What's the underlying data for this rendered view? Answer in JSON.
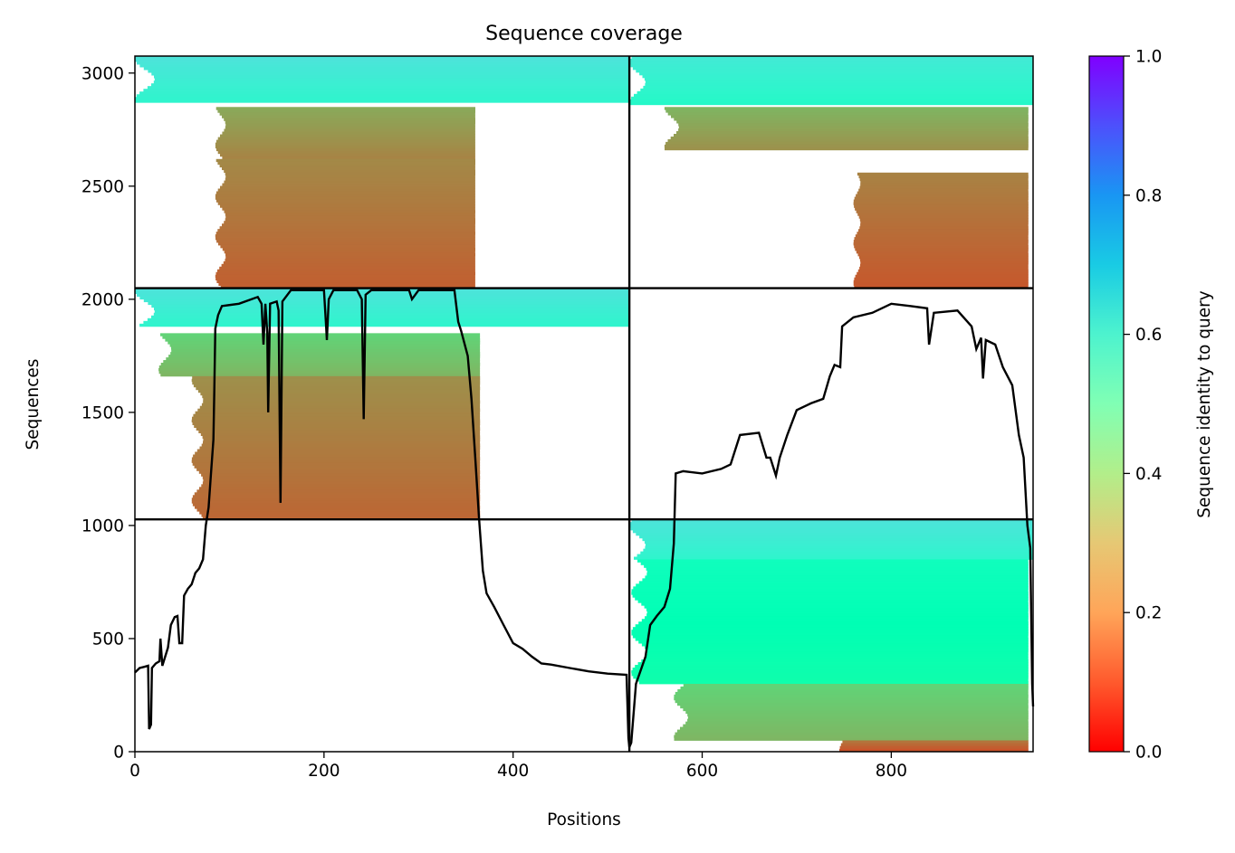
{
  "chart_data": {
    "type": "heatmap",
    "title": "Sequence coverage",
    "xlabel": "Positions",
    "ylabel": "Sequences",
    "xlim": [
      0,
      950
    ],
    "ylim": [
      0,
      3075
    ],
    "x_ticks": [
      0,
      200,
      400,
      600,
      800
    ],
    "y_ticks": [
      0,
      500,
      1000,
      1500,
      2000,
      2500,
      3000
    ],
    "grid": false,
    "colorbar": {
      "label": "Sequence identity to query",
      "colormap": "rainbow_r",
      "range": [
        0,
        1
      ],
      "ticks": [
        "0.0",
        "0.2",
        "0.4",
        "0.6",
        "0.8",
        "1.0"
      ]
    },
    "chain_boundaries_x": [
      523
    ],
    "chain_boundaries_y": [
      1027,
      2049
    ],
    "blocks": [
      {
        "name": "A1",
        "x": [
          0,
          523
        ],
        "y": [
          2049,
          3075
        ],
        "segments": [
          {
            "x": [
              0,
              523
            ],
            "y": [
              2870,
              3075
            ],
            "identity": 0.62
          },
          {
            "x": [
              85,
              360
            ],
            "y": [
              2620,
              2850
            ],
            "identity": 0.2
          },
          {
            "x": [
              85,
              360
            ],
            "y": [
              2049,
              2620
            ],
            "identity": 0.15
          }
        ]
      },
      {
        "name": "A2",
        "x": [
          523,
          950
        ],
        "y": [
          2049,
          3075
        ],
        "segments": [
          {
            "x": [
              523,
              950
            ],
            "y": [
              2860,
              3075
            ],
            "identity": 0.6
          },
          {
            "x": [
              560,
              945
            ],
            "y": [
              2660,
              2850
            ],
            "identity": 0.22
          },
          {
            "x": [
              760,
              945
            ],
            "y": [
              2049,
              2560
            ],
            "identity": 0.14
          }
        ]
      },
      {
        "name": "B1",
        "x": [
          0,
          523
        ],
        "y": [
          1027,
          2049
        ],
        "segments": [
          {
            "x": [
              0,
              523
            ],
            "y": [
              1880,
              2049
            ],
            "identity": 0.62
          },
          {
            "x": [
              25,
              365
            ],
            "y": [
              1660,
              1850
            ],
            "identity": 0.28
          },
          {
            "x": [
              60,
              365
            ],
            "y": [
              1027,
              1660
            ],
            "identity": 0.16
          }
        ]
      },
      {
        "name": "C2",
        "x": [
          523,
          950
        ],
        "y": [
          0,
          1027
        ],
        "segments": [
          {
            "x": [
              523,
              950
            ],
            "y": [
              850,
              1027
            ],
            "identity": 0.62
          },
          {
            "x": [
              525,
              945
            ],
            "y": [
              300,
              850
            ],
            "identity": 0.5
          },
          {
            "x": [
              570,
              945
            ],
            "y": [
              50,
              300
            ],
            "identity": 0.28
          },
          {
            "x": [
              745,
              945
            ],
            "y": [
              0,
              50
            ],
            "identity": 0.12
          }
        ]
      }
    ],
    "coverage": [
      [
        0,
        350
      ],
      [
        5,
        370
      ],
      [
        10,
        375
      ],
      [
        14,
        380
      ],
      [
        15,
        100
      ],
      [
        17,
        120
      ],
      [
        18,
        370
      ],
      [
        22,
        390
      ],
      [
        26,
        400
      ],
      [
        27,
        500
      ],
      [
        29,
        380
      ],
      [
        32,
        420
      ],
      [
        35,
        460
      ],
      [
        38,
        560
      ],
      [
        42,
        595
      ],
      [
        45,
        600
      ],
      [
        47,
        480
      ],
      [
        50,
        480
      ],
      [
        52,
        690
      ],
      [
        56,
        720
      ],
      [
        60,
        740
      ],
      [
        64,
        790
      ],
      [
        68,
        810
      ],
      [
        70,
        830
      ],
      [
        72,
        850
      ],
      [
        75,
        1000
      ],
      [
        78,
        1080
      ],
      [
        80,
        1200
      ],
      [
        83,
        1380
      ],
      [
        84,
        1600
      ],
      [
        85,
        1870
      ],
      [
        88,
        1930
      ],
      [
        92,
        1970
      ],
      [
        110,
        1980
      ],
      [
        130,
        2010
      ],
      [
        134,
        1980
      ],
      [
        136,
        1800
      ],
      [
        138,
        1980
      ],
      [
        140,
        1850
      ],
      [
        141,
        1500
      ],
      [
        143,
        1980
      ],
      [
        150,
        1990
      ],
      [
        152,
        1950
      ],
      [
        154,
        1100
      ],
      [
        156,
        1990
      ],
      [
        165,
        2040
      ],
      [
        200,
        2040
      ],
      [
        202,
        1900
      ],
      [
        203,
        1820
      ],
      [
        205,
        2000
      ],
      [
        210,
        2040
      ],
      [
        235,
        2040
      ],
      [
        240,
        2000
      ],
      [
        242,
        1470
      ],
      [
        244,
        2020
      ],
      [
        250,
        2040
      ],
      [
        290,
        2040
      ],
      [
        293,
        2000
      ],
      [
        300,
        2040
      ],
      [
        338,
        2040
      ],
      [
        342,
        1900
      ],
      [
        345,
        1860
      ],
      [
        352,
        1750
      ],
      [
        356,
        1560
      ],
      [
        360,
        1300
      ],
      [
        364,
        1030
      ],
      [
        368,
        800
      ],
      [
        372,
        700
      ],
      [
        380,
        640
      ],
      [
        390,
        560
      ],
      [
        400,
        480
      ],
      [
        410,
        455
      ],
      [
        420,
        420
      ],
      [
        430,
        390
      ],
      [
        440,
        385
      ],
      [
        460,
        370
      ],
      [
        480,
        355
      ],
      [
        500,
        345
      ],
      [
        520,
        340
      ],
      [
        522,
        60
      ],
      [
        523,
        20
      ],
      [
        525,
        40
      ],
      [
        530,
        300
      ],
      [
        540,
        420
      ],
      [
        545,
        560
      ],
      [
        552,
        600
      ],
      [
        560,
        640
      ],
      [
        566,
        720
      ],
      [
        570,
        920
      ],
      [
        572,
        1230
      ],
      [
        580,
        1240
      ],
      [
        600,
        1230
      ],
      [
        620,
        1250
      ],
      [
        630,
        1270
      ],
      [
        640,
        1400
      ],
      [
        660,
        1410
      ],
      [
        668,
        1300
      ],
      [
        672,
        1300
      ],
      [
        678,
        1220
      ],
      [
        682,
        1300
      ],
      [
        690,
        1400
      ],
      [
        700,
        1510
      ],
      [
        715,
        1540
      ],
      [
        728,
        1560
      ],
      [
        735,
        1660
      ],
      [
        740,
        1710
      ],
      [
        746,
        1700
      ],
      [
        748,
        1880
      ],
      [
        760,
        1920
      ],
      [
        780,
        1940
      ],
      [
        800,
        1980
      ],
      [
        820,
        1970
      ],
      [
        838,
        1960
      ],
      [
        840,
        1800
      ],
      [
        845,
        1940
      ],
      [
        870,
        1950
      ],
      [
        885,
        1880
      ],
      [
        890,
        1780
      ],
      [
        895,
        1830
      ],
      [
        897,
        1650
      ],
      [
        900,
        1820
      ],
      [
        910,
        1800
      ],
      [
        918,
        1700
      ],
      [
        928,
        1620
      ],
      [
        935,
        1400
      ],
      [
        940,
        1300
      ],
      [
        944,
        1000
      ],
      [
        947,
        900
      ],
      [
        949,
        300
      ],
      [
        950,
        200
      ]
    ]
  }
}
